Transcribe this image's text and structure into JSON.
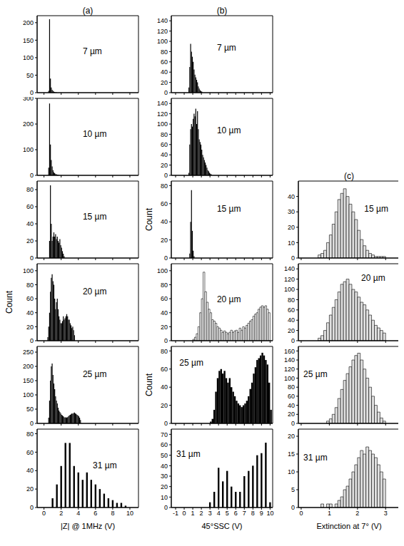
{
  "chart_data": [
    {
      "type": "histogram",
      "title": "(a)",
      "annotation": "7 µm",
      "color": "#000000",
      "xlim": [
        -0.8,
        11
      ],
      "xticks": [
        0,
        2,
        4,
        6,
        8,
        10
      ],
      "ylim": [
        0,
        220
      ],
      "yticks": [
        0,
        50,
        100,
        150,
        200
      ],
      "tick_labels": "y",
      "bins": [
        0.5,
        0.6,
        0.7,
        0.8,
        0.9,
        1.0,
        1.1,
        1.2,
        1.3,
        1.4,
        1.5
      ],
      "counts": [
        5,
        210,
        40,
        15,
        8,
        5,
        3,
        2,
        1,
        1
      ]
    },
    {
      "type": "histogram",
      "annotation": "10 µm",
      "color": "#000000",
      "xlim": [
        -0.8,
        11
      ],
      "xticks": [
        0,
        2,
        4,
        6,
        8,
        10
      ],
      "ylim": [
        0,
        300
      ],
      "yticks": [
        0,
        100,
        200,
        300
      ],
      "tick_labels": "y",
      "bins": [
        0.5,
        0.6,
        0.7,
        0.8,
        0.9,
        1.0,
        1.1,
        1.2,
        1.3,
        1.4,
        1.5,
        1.6,
        1.7,
        1.8
      ],
      "counts": [
        30,
        280,
        120,
        60,
        35,
        20,
        12,
        8,
        5,
        4,
        3,
        2,
        1
      ]
    },
    {
      "type": "histogram",
      "annotation": "15 µm",
      "color": "#000000",
      "xlim": [
        -0.8,
        11
      ],
      "xticks": [
        0,
        2,
        4,
        6,
        8,
        10
      ],
      "ylim": [
        0,
        90
      ],
      "yticks": [
        0,
        20,
        40,
        60,
        80
      ],
      "tick_labels": "y",
      "bins": [
        0.6,
        0.7,
        0.8,
        0.9,
        1.0,
        1.1,
        1.2,
        1.3,
        1.4,
        1.5,
        1.6,
        1.7,
        1.8,
        1.9,
        2.0,
        2.1,
        2.2,
        2.3,
        2.4
      ],
      "counts": [
        20,
        85,
        40,
        20,
        25,
        30,
        25,
        28,
        22,
        25,
        20,
        18,
        22,
        15,
        12,
        8,
        5,
        2
      ]
    },
    {
      "type": "histogram",
      "annotation": "20 µm",
      "ylabel": "Count",
      "color": "#000000",
      "xlim": [
        -0.8,
        11
      ],
      "xticks": [
        0,
        2,
        4,
        6,
        8,
        10
      ],
      "ylim": [
        0,
        110
      ],
      "yticks": [
        0,
        20,
        40,
        60,
        80,
        100
      ],
      "tick_labels": "y",
      "bins": [
        0.4,
        0.5,
        0.6,
        0.7,
        0.8,
        0.9,
        1.0,
        1.1,
        1.2,
        1.3,
        1.4,
        1.5,
        1.6,
        1.7,
        1.8,
        1.9,
        2.0,
        2.1,
        2.2,
        2.3,
        2.4,
        2.5,
        2.6,
        2.7,
        2.8,
        2.9,
        3.0,
        3.1,
        3.2,
        3.3,
        3.4,
        3.5,
        3.6
      ],
      "counts": [
        5,
        20,
        40,
        70,
        90,
        95,
        85,
        80,
        60,
        45,
        55,
        60,
        45,
        35,
        30,
        25,
        25,
        28,
        35,
        30,
        32,
        35,
        38,
        35,
        30,
        30,
        25,
        22,
        18,
        20,
        15,
        8
      ]
    },
    {
      "type": "histogram",
      "annotation": "25 µm",
      "color": "#000000",
      "xlim": [
        -0.8,
        11
      ],
      "xticks": [
        0,
        2,
        4,
        6,
        8,
        10
      ],
      "ylim": [
        0,
        270
      ],
      "yticks": [
        0,
        50,
        100,
        150,
        200,
        250
      ],
      "tick_labels": "y",
      "bins": [
        0.5,
        0.6,
        0.7,
        0.8,
        0.9,
        1.0,
        1.1,
        1.2,
        1.3,
        1.4,
        1.5,
        1.6,
        1.7,
        1.8,
        1.9,
        2.0,
        2.1,
        2.2,
        2.3,
        2.4,
        2.5,
        2.6,
        2.7,
        2.8,
        2.9,
        3.0,
        3.1,
        3.2,
        3.3,
        3.4,
        3.5,
        3.6,
        3.7,
        3.8,
        3.9,
        4.0,
        4.1,
        4.2,
        4.3
      ],
      "counts": [
        20,
        80,
        150,
        200,
        210,
        170,
        140,
        120,
        95,
        80,
        70,
        55,
        45,
        40,
        35,
        30,
        28,
        25,
        22,
        20,
        22,
        20,
        22,
        25,
        28,
        30,
        32,
        35,
        34,
        36,
        38,
        35,
        33,
        30,
        28,
        25,
        20,
        12
      ]
    },
    {
      "type": "histogram",
      "annotation": "31 µm",
      "xlabel": "|Z| @ 1MHz (V)",
      "color": "#000000",
      "xlim": [
        -0.8,
        11
      ],
      "xticks": [
        0,
        2,
        4,
        6,
        8,
        10
      ],
      "ylim": [
        0,
        85
      ],
      "yticks": [
        0,
        20,
        40,
        60,
        80
      ],
      "bins": [
        0.9,
        1.1,
        1.4,
        1.6,
        1.9,
        2.1,
        2.4,
        2.6,
        2.9,
        3.1,
        3.4,
        3.6,
        3.9,
        4.1,
        4.4,
        4.6,
        4.9,
        5.1,
        5.4,
        5.6,
        5.9,
        6.1,
        6.4,
        6.6,
        6.9,
        7.1,
        7.4,
        7.6,
        7.9,
        8.1,
        8.4,
        8.6,
        8.9,
        9.1,
        9.4,
        9.6
      ],
      "counts": [
        10,
        0,
        25,
        0,
        45,
        0,
        70,
        0,
        70,
        0,
        45,
        0,
        38,
        0,
        30,
        0,
        38,
        0,
        30,
        0,
        25,
        0,
        20,
        0,
        15,
        0,
        10,
        0,
        8,
        0,
        5,
        0,
        5,
        0,
        2
      ]
    },
    {
      "type": "histogram",
      "title": "(b)",
      "annotation": "7 µm",
      "color": "#000000",
      "xlim": [
        -1.5,
        10.3
      ],
      "xticks": [
        -1,
        0,
        1,
        2,
        3,
        4,
        5,
        6,
        7,
        8,
        9,
        10
      ],
      "ylim": [
        0,
        150
      ],
      "yticks": [
        0,
        20,
        40,
        60,
        80,
        100,
        120,
        140
      ],
      "tick_labels": "y",
      "bins": [
        0.5,
        0.6,
        0.7,
        0.8,
        0.9,
        1.0,
        1.1,
        1.2,
        1.3,
        1.4,
        1.5,
        1.6,
        1.7,
        1.8,
        1.9,
        2.0,
        2.1
      ],
      "counts": [
        10,
        50,
        95,
        80,
        70,
        60,
        45,
        35,
        30,
        25,
        20,
        12,
        8,
        5,
        3,
        2
      ]
    },
    {
      "type": "histogram",
      "annotation": "10 µm",
      "color": "#000000",
      "xlim": [
        -1.5,
        10.3
      ],
      "xticks": [
        -1,
        0,
        1,
        2,
        3,
        4,
        5,
        6,
        7,
        8,
        9,
        10
      ],
      "ylim": [
        0,
        150
      ],
      "yticks": [
        0,
        20,
        40,
        60,
        80,
        100,
        120,
        140
      ],
      "tick_labels": "y",
      "bins": [
        0.5,
        0.6,
        0.7,
        0.8,
        0.9,
        1.0,
        1.1,
        1.2,
        1.3,
        1.4,
        1.5,
        1.6,
        1.7,
        1.8,
        1.9,
        2.0,
        2.1,
        2.2,
        2.3,
        2.4,
        2.5,
        2.6,
        2.7,
        2.8,
        2.9,
        3.0,
        3.1,
        3.2
      ],
      "counts": [
        5,
        60,
        90,
        100,
        95,
        110,
        120,
        115,
        130,
        100,
        125,
        90,
        70,
        65,
        60,
        50,
        40,
        35,
        30,
        25,
        20,
        15,
        10,
        8,
        5,
        3,
        2
      ]
    },
    {
      "type": "histogram",
      "annotation": "15 µm",
      "ylabel": "Count",
      "color": "#000000",
      "xlim": [
        -1.5,
        10.3
      ],
      "xticks": [
        -1,
        0,
        1,
        2,
        3,
        4,
        5,
        6,
        7,
        8,
        9,
        10
      ],
      "ylim": [
        0,
        85
      ],
      "yticks": [
        0,
        20,
        40,
        60,
        80
      ],
      "tick_labels": "y",
      "bins": [
        0.6,
        0.7,
        0.8,
        0.9,
        1.0,
        1.1,
        1.2
      ],
      "counts": [
        5,
        40,
        75,
        30,
        8,
        2
      ]
    },
    {
      "type": "histogram",
      "annotation": "20 µm",
      "color": "#ffffff",
      "xlim": [
        -1.5,
        10.3
      ],
      "xticks": [
        -1,
        0,
        1,
        2,
        3,
        4,
        5,
        6,
        7,
        8,
        9,
        10
      ],
      "ylim": [
        0,
        110
      ],
      "yticks": [
        0,
        20,
        40,
        60,
        80,
        100
      ],
      "tick_labels": "y",
      "bins": [
        1.0,
        1.2,
        1.4,
        1.6,
        1.8,
        2.0,
        2.2,
        2.4,
        2.6,
        2.8,
        3.0,
        3.2,
        3.4,
        3.6,
        3.8,
        4.0,
        4.2,
        4.4,
        4.6,
        4.8,
        5.0,
        5.2,
        5.4,
        5.6,
        5.8,
        6.0,
        6.2,
        6.4,
        6.6,
        6.8,
        7.0,
        7.2,
        7.4,
        7.6,
        7.8,
        8.0,
        8.2,
        8.4,
        8.6,
        8.8,
        9.0,
        9.2,
        9.4,
        9.6,
        9.8,
        10.0
      ],
      "counts": [
        2,
        5,
        10,
        20,
        40,
        60,
        98,
        70,
        55,
        45,
        40,
        30,
        28,
        25,
        20,
        18,
        15,
        12,
        14,
        12,
        10,
        12,
        15,
        12,
        14,
        15,
        12,
        18,
        15,
        20,
        18,
        22,
        25,
        28,
        30,
        35,
        38,
        40,
        45,
        48,
        50,
        48,
        50,
        45,
        40
      ]
    },
    {
      "type": "histogram",
      "annotation": "25 µm",
      "ylabel": "Count",
      "color": "#000000",
      "xlim": [
        -1.5,
        10.3
      ],
      "xticks": [
        -1,
        0,
        1,
        2,
        3,
        4,
        5,
        6,
        7,
        8,
        9,
        10
      ],
      "ylim": [
        0,
        85
      ],
      "yticks": [
        0,
        20,
        40,
        60,
        80
      ],
      "tick_labels": "y",
      "bins": [
        3.0,
        3.2,
        3.4,
        3.6,
        3.8,
        4.0,
        4.2,
        4.4,
        4.6,
        4.8,
        5.0,
        5.2,
        5.4,
        5.6,
        5.8,
        6.0,
        6.2,
        6.4,
        6.6,
        6.8,
        7.0,
        7.2,
        7.4,
        7.6,
        7.8,
        8.0,
        8.2,
        8.4,
        8.6,
        8.8,
        9.0,
        9.2,
        9.4,
        9.6,
        9.8,
        10.0,
        10.2
      ],
      "counts": [
        2,
        5,
        15,
        35,
        50,
        58,
        60,
        55,
        58,
        50,
        45,
        50,
        40,
        35,
        30,
        25,
        22,
        20,
        18,
        20,
        22,
        25,
        30,
        38,
        45,
        55,
        62,
        70,
        72,
        75,
        78,
        75,
        70,
        65,
        45,
        15
      ]
    },
    {
      "type": "histogram",
      "annotation": "31 µm",
      "xlabel": "45°SSC (V)",
      "color": "#000000",
      "xlim": [
        -1.5,
        10.3
      ],
      "xticks": [
        -1,
        0,
        1,
        2,
        3,
        4,
        5,
        6,
        7,
        8,
        9,
        10
      ],
      "ylim": [
        0,
        75
      ],
      "yticks": [
        0,
        10,
        20,
        30,
        40,
        50,
        60,
        70
      ],
      "bins": [
        2.9,
        3.1,
        3.4,
        3.6,
        3.9,
        4.1,
        4.4,
        4.6,
        4.9,
        5.1,
        5.4,
        5.6,
        5.9,
        6.1,
        6.4,
        6.6,
        6.9,
        7.1,
        7.4,
        7.6,
        7.9,
        8.1,
        8.4,
        8.6,
        8.9,
        9.1,
        9.4,
        9.6,
        9.9,
        10.1
      ],
      "counts": [
        5,
        0,
        15,
        0,
        38,
        0,
        25,
        0,
        35,
        0,
        20,
        0,
        15,
        0,
        15,
        0,
        30,
        0,
        35,
        0,
        40,
        0,
        50,
        0,
        52,
        0,
        62,
        0,
        5
      ]
    },
    {
      "type": "histogram",
      "title": "(c)",
      "annotation": "15 µm",
      "color": "#e0e0e0",
      "xlim": [
        -0.1,
        3.5
      ],
      "xticks": [
        0,
        1,
        2,
        3
      ],
      "ylim": [
        0,
        50
      ],
      "yticks": [
        0,
        10,
        20,
        30,
        40
      ],
      "tick_labels": "y",
      "bins": [
        0.6,
        0.7,
        0.8,
        0.9,
        1.0,
        1.1,
        1.2,
        1.3,
        1.4,
        1.5,
        1.6,
        1.7,
        1.8,
        1.9,
        2.0,
        2.1,
        2.2,
        2.3,
        2.4,
        2.5,
        2.6,
        2.7,
        2.8,
        2.9,
        3.0
      ],
      "counts": [
        2,
        3,
        5,
        10,
        15,
        22,
        30,
        38,
        42,
        45,
        40,
        35,
        30,
        25,
        18,
        12,
        8,
        5,
        3,
        2,
        1,
        1,
        1,
        1
      ]
    },
    {
      "type": "histogram",
      "annotation": "20 µm",
      "color": "#e0e0e0",
      "xlim": [
        -0.1,
        3.5
      ],
      "xticks": [
        0,
        1,
        2,
        3
      ],
      "ylim": [
        0,
        150
      ],
      "yticks": [
        0,
        20,
        40,
        60,
        80,
        100,
        120,
        140
      ],
      "tick_labels": "y",
      "bins": [
        0.6,
        0.7,
        0.8,
        0.9,
        1.0,
        1.1,
        1.2,
        1.3,
        1.4,
        1.5,
        1.6,
        1.7,
        1.8,
        1.9,
        2.0,
        2.1,
        2.2,
        2.3,
        2.4,
        2.5,
        2.6,
        2.7,
        2.8,
        2.9,
        3.0
      ],
      "counts": [
        5,
        10,
        20,
        35,
        50,
        65,
        80,
        95,
        110,
        115,
        120,
        110,
        100,
        95,
        85,
        75,
        70,
        60,
        50,
        40,
        30,
        25,
        20,
        15
      ]
    },
    {
      "type": "histogram",
      "annotation": "25 µm",
      "color": "#e0e0e0",
      "xlim": [
        -0.1,
        3.5
      ],
      "xticks": [
        0,
        1,
        2,
        3
      ],
      "ylim": [
        0,
        170
      ],
      "yticks": [
        0,
        20,
        40,
        60,
        80,
        100,
        120,
        140,
        160
      ],
      "tick_labels": "y",
      "bins": [
        0.9,
        1.0,
        1.1,
        1.2,
        1.3,
        1.4,
        1.5,
        1.6,
        1.7,
        1.8,
        1.9,
        2.0,
        2.1,
        2.2,
        2.3,
        2.4,
        2.5,
        2.6,
        2.7,
        2.8,
        2.9,
        3.0
      ],
      "counts": [
        5,
        10,
        20,
        35,
        55,
        75,
        95,
        110,
        125,
        140,
        150,
        155,
        140,
        120,
        100,
        80,
        60,
        40,
        25,
        12,
        5
      ]
    },
    {
      "type": "histogram",
      "annotation": "31 µm",
      "xlabel": "Extinction at 7° (V)",
      "color": "#e0e0e0",
      "xlim": [
        -0.1,
        3.5
      ],
      "xticks": [
        0,
        1,
        2,
        3
      ],
      "ylim": [
        0,
        22
      ],
      "yticks": [
        0,
        5,
        10,
        15,
        20
      ],
      "bins": [
        0.7,
        0.8,
        0.9,
        1.0,
        1.1,
        1.2,
        1.3,
        1.4,
        1.5,
        1.6,
        1.7,
        1.8,
        1.9,
        2.0,
        2.1,
        2.2,
        2.3,
        2.4,
        2.5,
        2.6,
        2.7,
        2.8,
        2.9,
        3.0
      ],
      "counts": [
        1,
        0,
        1,
        1,
        0,
        1,
        2,
        3,
        5,
        6,
        8,
        10,
        12,
        14,
        16,
        15,
        17,
        16,
        15,
        14,
        12,
        10,
        8
      ]
    }
  ]
}
